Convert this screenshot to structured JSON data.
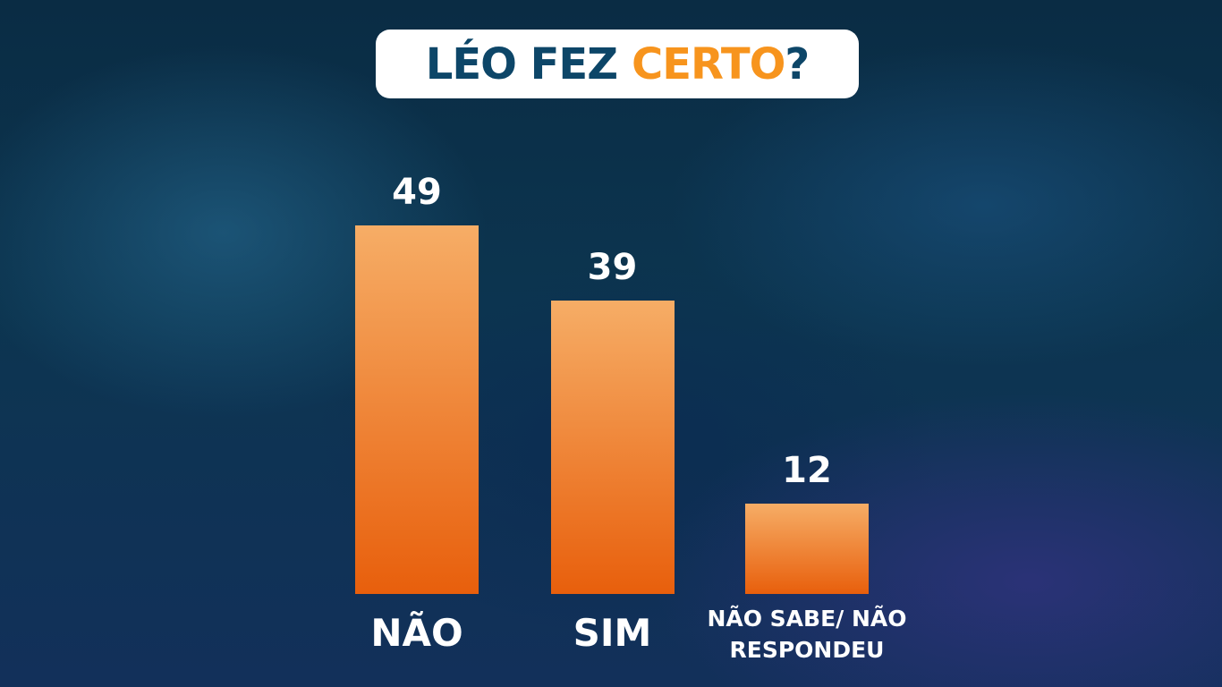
{
  "chart_data": {
    "type": "bar",
    "title": [
      "LÉO FEZ",
      "CERTO",
      "?"
    ],
    "title_colors": [
      "#0d4668",
      "#f7941d",
      "#0d4668"
    ],
    "categories": [
      "NÃO",
      "SIM",
      "NÃO SABE/ NÃO RESPONDEU"
    ],
    "values": [
      49,
      39,
      12
    ],
    "color": [
      "#f6ad66",
      "#e85f0c"
    ]
  }
}
